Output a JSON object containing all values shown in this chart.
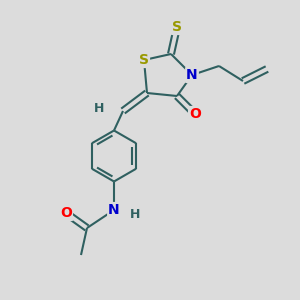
{
  "background_color": "#dcdcdc",
  "atom_colors": {
    "S": "#999900",
    "N": "#0000cc",
    "O": "#ff0000",
    "C": "#2f6060",
    "H": "#2f6060"
  },
  "bond_color": "#2f6060",
  "bond_width": 1.5,
  "figsize": [
    3.0,
    3.0
  ],
  "dpi": 100,
  "xlim": [
    0,
    10
  ],
  "ylim": [
    0,
    10
  ]
}
